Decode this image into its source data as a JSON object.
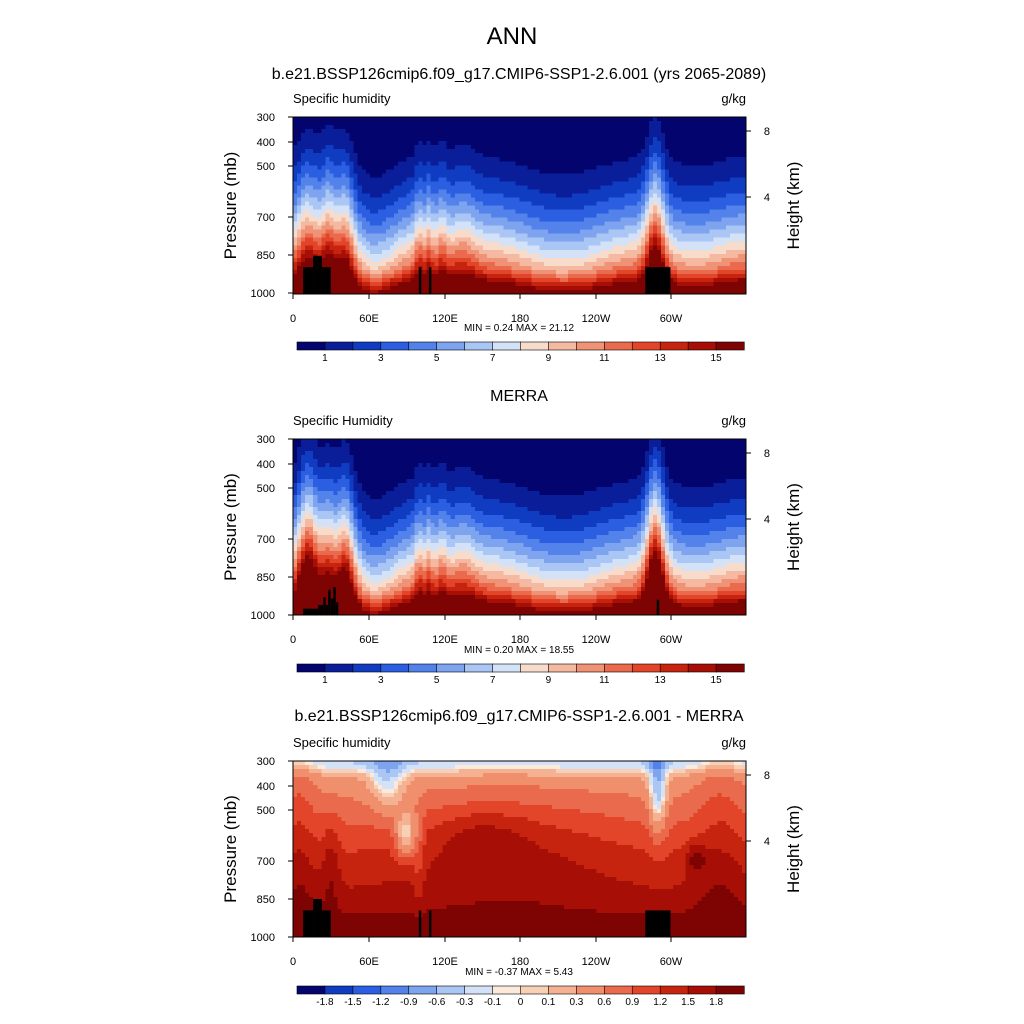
{
  "figure_title": "ANN",
  "chart_data": [
    {
      "type": "heatmap",
      "title": "b.e21.BSSP126cmip6.f09_g17.CMIP6-SSP1-2.6.001 (yrs 2065-2089)",
      "left_label": "Specific humidity",
      "units": "g/kg",
      "ylabel": "Pressure (mb)",
      "y2label": "Height (km)",
      "yticks": [
        "300",
        "400",
        "500",
        "700",
        "850",
        "1000"
      ],
      "y2ticks": [
        "8",
        "4"
      ],
      "xticks": [
        "0",
        "60E",
        "120E",
        "180",
        "120W",
        "60W"
      ],
      "stats": "MIN =   0.24  MAX =  21.12",
      "colorbar_labels": [
        "1",
        "3",
        "5",
        "7",
        "9",
        "11",
        "13",
        "15"
      ],
      "field": "abs"
    },
    {
      "type": "heatmap",
      "title": "MERRA",
      "left_label": "Specific Humidity",
      "units": "g/kg",
      "ylabel": "Pressure (mb)",
      "y2label": "Height (km)",
      "yticks": [
        "300",
        "400",
        "500",
        "700",
        "850",
        "1000"
      ],
      "y2ticks": [
        "8",
        "4"
      ],
      "xticks": [
        "0",
        "60E",
        "120E",
        "180",
        "120W",
        "60W"
      ],
      "stats": "MIN =   0.20  MAX =  18.55",
      "colorbar_labels": [
        "1",
        "3",
        "5",
        "7",
        "9",
        "11",
        "13",
        "15"
      ],
      "field": "abs"
    },
    {
      "type": "heatmap",
      "title": "b.e21.BSSP126cmip6.f09_g17.CMIP6-SSP1-2.6.001 - MERRA",
      "left_label": "Specific humidity",
      "units": "g/kg",
      "ylabel": "Pressure (mb)",
      "y2label": "Height (km)",
      "yticks": [
        "300",
        "400",
        "500",
        "700",
        "850",
        "1000"
      ],
      "y2ticks": [
        "8",
        "4"
      ],
      "xticks": [
        "0",
        "60E",
        "120E",
        "180",
        "120W",
        "60W"
      ],
      "stats": "MIN =  -0.37  MAX =   5.43",
      "colorbar_labels": [
        "-1.8",
        "-1.5",
        "-1.2",
        "-0.9",
        "-0.6",
        "-0.3",
        "-0.1",
        "0",
        "0.1",
        "0.3",
        "0.6",
        "0.9",
        "1.2",
        "1.5",
        "1.8"
      ],
      "field": "diff"
    }
  ],
  "colors": {
    "abs_palette": [
      "#04046e",
      "#0a1e9a",
      "#0f3cc0",
      "#2b5ee0",
      "#5282ea",
      "#7ea4f0",
      "#aac6f4",
      "#d4e2f7",
      "#f8dccb",
      "#f4b9a0",
      "#f09276",
      "#ea6a4e",
      "#e2452a",
      "#c72410",
      "#a70e05",
      "#7e0303"
    ],
    "diff_palette": [
      "#04046e",
      "#0f3cc0",
      "#2b5ee0",
      "#5282ea",
      "#7ea4f0",
      "#aac6f4",
      "#d4e2f7",
      "#fbeadc",
      "#f8d0b6",
      "#f4b292",
      "#f08f6c",
      "#ea6a4e",
      "#e2452a",
      "#c72410",
      "#a70e05",
      "#7e0303"
    ],
    "terrain": "#000000"
  }
}
